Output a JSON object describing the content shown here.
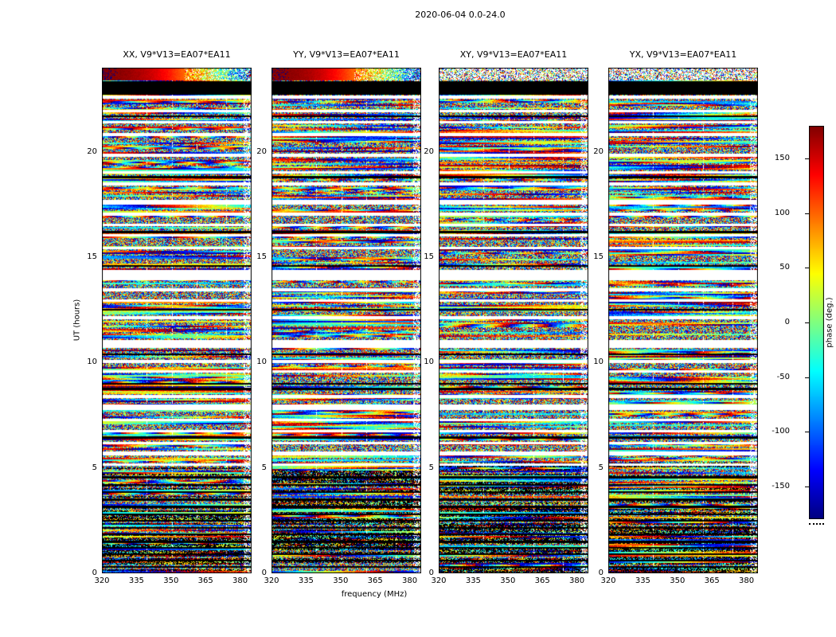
{
  "chart_data": {
    "type": "heatmap",
    "title": "2020-06-04 0.0-24.0",
    "xlabel": "frequency (MHz)",
    "ylabel": "UT (hours)",
    "x_range": [
      320,
      385
    ],
    "x_ticks": [
      320,
      335,
      350,
      365,
      380
    ],
    "y_range": [
      0,
      24
    ],
    "y_ticks": [
      0,
      5,
      10,
      15,
      20
    ],
    "panels": [
      {
        "pol": "XX",
        "title": "XX, V9*V13=EA07*EA11"
      },
      {
        "pol": "YY",
        "title": "YY, V9*V13=EA07*EA11"
      },
      {
        "pol": "XY",
        "title": "XY, V9*V13=EA07*EA11"
      },
      {
        "pol": "YX",
        "title": "YX, V9*V13=EA07*EA11"
      }
    ],
    "colorbar": {
      "label": "phase (deg.)",
      "range": [
        -180,
        180
      ],
      "ticks": [
        150,
        100,
        50,
        0,
        -50,
        -100,
        -150
      ],
      "colormap": "jet"
    },
    "features": {
      "description": "per-baseline visibility phase vs frequency and time; random wrapped-phase noise with flagged (white) time gaps and black bands",
      "smooth_band": {
        "panels": [
          "XX",
          "YY"
        ],
        "time_start": 23.4,
        "time_end": 24.0,
        "phase_left_deg": 178,
        "phase_right_deg": -122
      },
      "black_band": {
        "time_start": 22.72,
        "time_end": 23.35
      },
      "white_time_gaps": [
        [
          22.52,
          22.68
        ],
        [
          21.88,
          22.0
        ],
        [
          21.35,
          21.47
        ],
        [
          20.75,
          20.9
        ],
        [
          19.77,
          19.92
        ],
        [
          18.97,
          19.08
        ],
        [
          18.41,
          18.56
        ],
        [
          17.5,
          17.73
        ],
        [
          16.97,
          17.12
        ],
        [
          16.48,
          16.59
        ],
        [
          15.99,
          16.1
        ],
        [
          15.38,
          15.5
        ],
        [
          13.91,
          14.4
        ],
        [
          13.38,
          13.53
        ],
        [
          12.89,
          13.0
        ],
        [
          12.06,
          12.21
        ],
        [
          10.7,
          11.07
        ],
        [
          9.98,
          10.13
        ],
        [
          9.52,
          9.64
        ],
        [
          8.31,
          8.47
        ],
        [
          7.75,
          8.01
        ],
        [
          7.22,
          7.33
        ],
        [
          6.69,
          6.8
        ],
        [
          6.12,
          6.24
        ],
        [
          5.59,
          5.78
        ],
        [
          5.1,
          5.22
        ]
      ],
      "black_time_rows": [
        21.7,
        18.8,
        16.2,
        14.6,
        12.5,
        10.4,
        9.0,
        8.75,
        6.45,
        4.55,
        4.2,
        3.85,
        3.5,
        3.15,
        2.8,
        2.5,
        2.15,
        1.85,
        1.5,
        1.2,
        0.9,
        0.6,
        0.3
      ],
      "white_columns": [
        0.297,
        0.466,
        0.634,
        0.83
      ],
      "noise_seed": 20200604
    }
  }
}
